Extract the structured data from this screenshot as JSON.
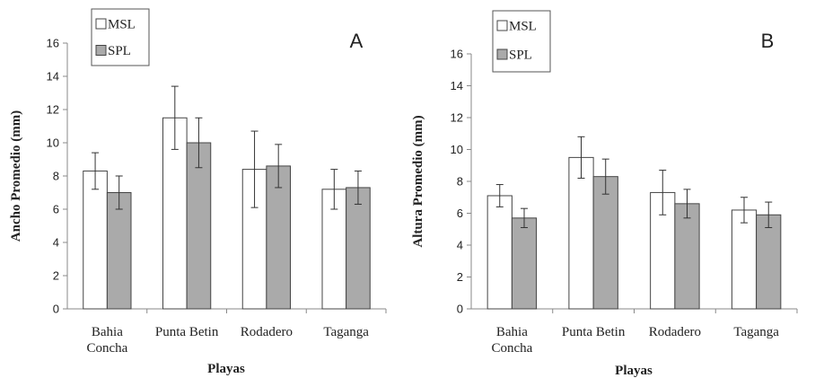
{
  "chart_data": [
    {
      "type": "bar",
      "panel_label": "A",
      "categories": [
        "Bahia\nConcha",
        "Punta Betin",
        "Rodadero",
        "Taganga"
      ],
      "xlabel": "Playas",
      "ylabel": "Ancho Promedio (mm)",
      "ylim": [
        0,
        16
      ],
      "yticks": [
        0,
        2,
        4,
        6,
        8,
        10,
        12,
        14,
        16
      ],
      "grid": false,
      "legend": "top-left",
      "series": [
        {
          "name": "MSL",
          "color": "#ffffff",
          "values": [
            8.3,
            11.5,
            8.4,
            7.2
          ],
          "error": [
            1.1,
            1.9,
            2.3,
            1.2
          ]
        },
        {
          "name": "SPL",
          "color": "#aaaaaa",
          "values": [
            7.0,
            10.0,
            8.6,
            7.3
          ],
          "error": [
            1.0,
            1.5,
            1.3,
            1.0
          ]
        }
      ]
    },
    {
      "type": "bar",
      "panel_label": "B",
      "categories": [
        "Bahia\nConcha",
        "Punta Betin",
        "Rodadero",
        "Taganga"
      ],
      "xlabel": "Playas",
      "ylabel": "Altura Promedio (mm)",
      "ylim": [
        0,
        16
      ],
      "yticks": [
        0,
        2,
        4,
        6,
        8,
        10,
        12,
        14,
        16
      ],
      "grid": false,
      "legend": "top-left",
      "series": [
        {
          "name": "MSL",
          "color": "#ffffff",
          "values": [
            7.1,
            9.5,
            7.3,
            6.2
          ],
          "error": [
            0.7,
            1.3,
            1.4,
            0.8
          ]
        },
        {
          "name": "SPL",
          "color": "#aaaaaa",
          "values": [
            5.7,
            8.3,
            6.6,
            5.9
          ],
          "error": [
            0.6,
            1.1,
            0.9,
            0.8
          ]
        }
      ]
    }
  ]
}
